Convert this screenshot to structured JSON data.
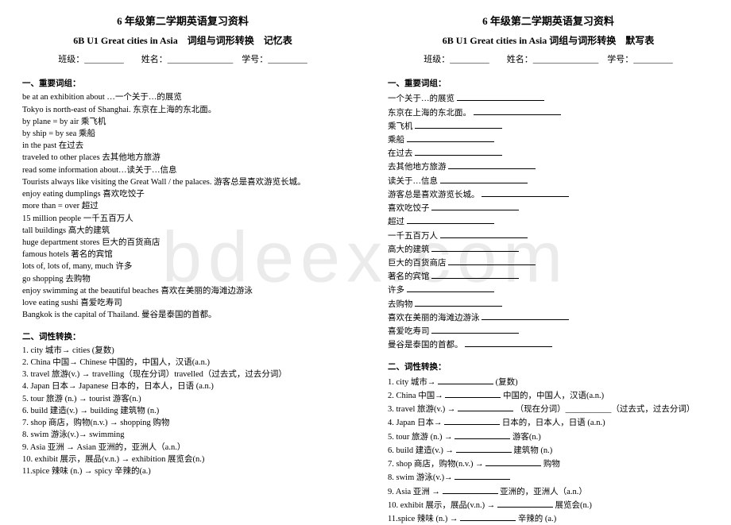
{
  "watermark": "bdeex.com",
  "left": {
    "header1": "6 年级第二学期英语复习资料",
    "header2": "6B U1 Great cities in Asia　词组与词形转换　记忆表",
    "info_class": "班级：_________　　姓名：_______________　学号：_________",
    "sec1_title": "一、重要词组：",
    "phrases": [
      "be at an exhibition about …一个关于…的展览",
      "Tokyo is north-east of Shanghai.  东京在上海的东北面。",
      "by plane = by air   乘飞机",
      "by ship = by sea    乘船",
      "in the past   在过去",
      "traveled to other places  去其他地方旅游",
      "read some information about…读关于…信息",
      "Tourists always like visiting the Great Wall / the palaces.  游客总是喜欢游览长城。",
      "enjoy eating dumplings 喜欢吃饺子",
      "more than = over  超过",
      "15 million people   一千五百万人",
      "tall buildings   高大的建筑",
      "huge department stores  巨大的百货商店",
      "famous hotels   著名的宾馆",
      "lots of, lots of, many, much   许多",
      "go shopping 去购物",
      "enjoy swimming at the beautiful beaches  喜欢在美丽的海滩边游泳",
      "love eating sushi  喜爱吃寿司",
      "Bangkok is the capital of Thailand.  曼谷是泰国的首都。"
    ],
    "sec2_title": "二、词性转换：",
    "forms": [
      "1. city  城市→ cities (复数)",
      "2. China  中国→ Chinese 中国的，中国人，汉语(a.n.)",
      "3. travel 旅游(v.) → travelling（现在分词）travelled（过去式，过去分词）",
      "4. Japan  日本→ Japanese 日本的，日本人，日语  (a.n.)",
      "5. tour  旅游  (n.) → tourist 游客(n.)",
      "6. build  建造(v.) → building 建筑物  (n.)",
      "7. shop 商店，购物(n.v.) → shopping 购物",
      "8. swim  游泳(v.)→ swimming",
      "9. Asia  亚洲  → Asian  亚洲的，亚洲人（a.n.）",
      "10. exhibit 展示，展品(v.n.) → exhibition  展览会(n.)",
      "11.spice 辣味  (n.) → spicy  辛辣的(a.)"
    ]
  },
  "right": {
    "header1": "6 年级第二学期英语复习资料",
    "header2": "6B U1 Great cities in Asia  词组与词形转换　默写表",
    "info_class": "班级：_________　　姓名：_______________　学号：_________",
    "sec1_title": "一、重要词组：",
    "phrases": [
      "一个关于…的展览",
      "东京在上海的东北面。",
      "乘飞机",
      "乘船",
      "在过去",
      "去其他地方旅游",
      "读关于…信息",
      "游客总是喜欢游览长城。",
      "喜欢吃饺子",
      "超过",
      "一千五百万人",
      "高大的建筑",
      "巨大的百货商店",
      "著名的宾馆",
      "许多",
      "去购物",
      "喜欢在美丽的海滩边游泳",
      "喜爱吃寿司",
      "曼谷是泰国的首都。"
    ],
    "sec2_title": "二、词性转换：",
    "forms_prefix": [
      "1. city  城市→",
      "2. China  中国→",
      "3. travel 旅游(v.) →",
      "4. Japan  日本→",
      "5. tour  旅游  (n.) →",
      "6. build  建造(v.) →",
      "7. shop 商店，购物(n.v.) →",
      "8. swim  游泳(v.)→",
      "9. Asia  亚洲  →",
      "10. exhibit 展示，展品(v.n.) →",
      "11.spice 辣味  (n.) →"
    ],
    "forms_suffix": [
      "(复数)",
      "中国的，中国人，汉语(a.n.)",
      "（现在分词）___________（过去式，过去分词）",
      "日本的，日本人，日语  (a.n.)",
      "游客(n.)",
      "建筑物  (n.)",
      "购物",
      "",
      "亚洲的，亚洲人（a.n.）",
      "展览会(n.)",
      "辛辣的  (a.)"
    ]
  }
}
